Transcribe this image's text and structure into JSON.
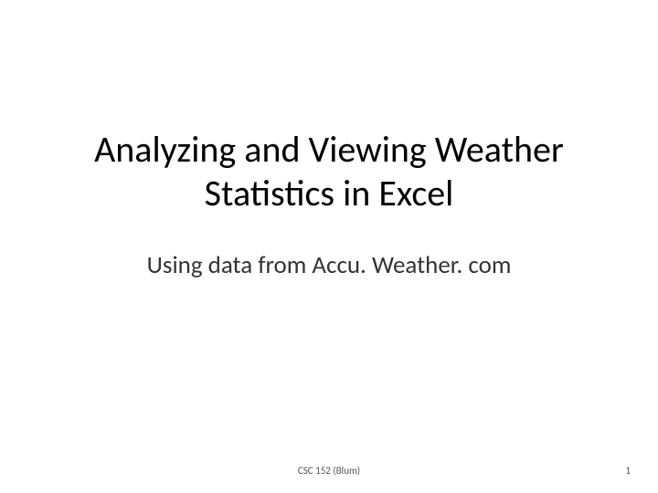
{
  "slide": {
    "title": "Analyzing and Viewing Weather Statistics in Excel",
    "subtitle": "Using data from Accu. Weather. com",
    "footer_text": "CSC 152 (Blum)",
    "page_number": "1",
    "background_color": "#ffffff",
    "title_color": "#000000",
    "subtitle_color": "#333333",
    "footer_color": "#555555",
    "title_fontsize": 40,
    "subtitle_fontsize": 27,
    "footer_fontsize": 11
  }
}
